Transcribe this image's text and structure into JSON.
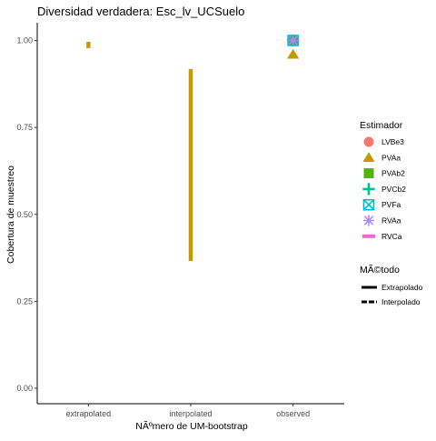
{
  "chart_data": {
    "type": "scatter",
    "title": "Diversidad verdadera: Esc_lv_UCSuelo",
    "xlabel": "NÃºmero de UM-bootstrap",
    "ylabel": "Cobertura de muestreo",
    "categories": [
      "extrapolated",
      "interpolated",
      "observed"
    ],
    "ylim": [
      0,
      1.05
    ],
    "yticks": [
      0.0,
      0.25,
      0.5,
      0.75,
      1.0
    ],
    "ytick_labels": [
      "0.00",
      "0.25",
      "0.50",
      "0.75",
      "1.00"
    ],
    "grid": false,
    "legend_placement": "right",
    "segments": [
      {
        "category": "extrapolated",
        "series": "PVAa",
        "y0": 0.978,
        "y1": 0.996
      },
      {
        "category": "interpolated",
        "series": "PVAa",
        "y0": 0.366,
        "y1": 0.918
      }
    ],
    "points": [
      {
        "category": "observed",
        "series": "PVAa",
        "y": 0.96,
        "shape": "triangle"
      },
      {
        "category": "observed",
        "series": "LVBe3",
        "y": 1.0,
        "shape": "circle"
      },
      {
        "category": "observed",
        "series": "PVAb2",
        "y": 1.0,
        "shape": "square"
      },
      {
        "category": "observed",
        "series": "PVCb2",
        "y": 1.0,
        "shape": "cross"
      },
      {
        "category": "observed",
        "series": "PVFa",
        "y": 1.0,
        "shape": "square-x"
      },
      {
        "category": "observed",
        "series": "RVAa",
        "y": 1.0,
        "shape": "asterisk"
      }
    ],
    "legend_estimador": {
      "title": "Estimador",
      "items": [
        {
          "label": "LVBe3",
          "color": "#F8766D",
          "shape": "circle"
        },
        {
          "label": "PVAa",
          "color": "#C49A00",
          "shape": "triangle"
        },
        {
          "label": "PVAb2",
          "color": "#53B400",
          "shape": "square"
        },
        {
          "label": "PVCb2",
          "color": "#00C094",
          "shape": "cross"
        },
        {
          "label": "PVFa",
          "color": "#00B6EB",
          "shape": "square-x"
        },
        {
          "label": "RVAa",
          "color": "#A58AFF",
          "shape": "asterisk"
        },
        {
          "label": "RVCa",
          "color": "#FB61D7",
          "shape": "line"
        }
      ]
    },
    "legend_metodo": {
      "title": "MÃ©todo",
      "items": [
        {
          "label": "Extrapolado",
          "linetype": "solid"
        },
        {
          "label": "Interpolado",
          "linetype": "dashed"
        }
      ]
    }
  }
}
